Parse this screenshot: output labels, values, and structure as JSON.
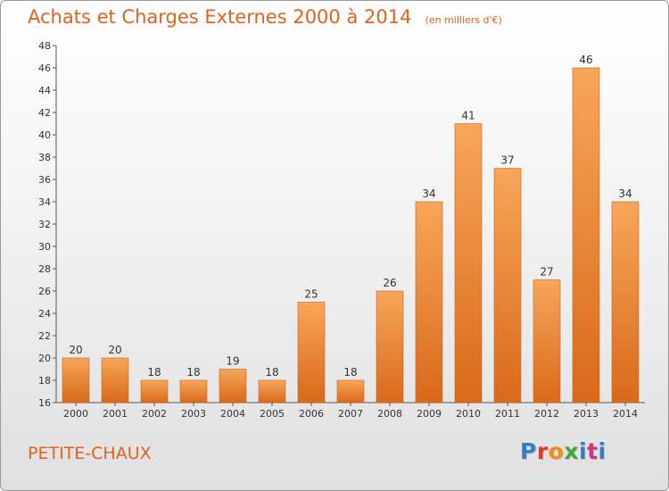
{
  "header": {
    "title": "Achats et Charges Externes 2000 à 2014",
    "unit": "(en milliers d'€)"
  },
  "footer": {
    "place": "PETITE-CHAUX",
    "brand": "Proxiti"
  },
  "colors": {
    "bar_light": "#f7a65a",
    "bar_dark": "#d9691a",
    "accent": "#e0621d",
    "brand_letters": [
      "#2f7fc1",
      "#e03a2e",
      "#f08c1a",
      "#4aa23a",
      "#2f7fc1",
      "#d6327a",
      "#2f7fc1"
    ]
  },
  "chart_data": {
    "type": "bar",
    "title": "Achats et Charges Externes 2000 à 2014",
    "subtitle": "(en milliers d'€)",
    "categories": [
      "2000",
      "2001",
      "2002",
      "2003",
      "2004",
      "2005",
      "2006",
      "2007",
      "2008",
      "2009",
      "2010",
      "2011",
      "2012",
      "2013",
      "2014"
    ],
    "values": [
      20,
      20,
      18,
      18,
      19,
      18,
      25,
      18,
      26,
      34,
      41,
      37,
      27,
      46,
      34
    ],
    "ylim": [
      16,
      48
    ],
    "yticks": [
      16,
      18,
      20,
      22,
      24,
      26,
      28,
      30,
      32,
      34,
      36,
      38,
      40,
      42,
      44,
      46,
      48
    ],
    "grid": false,
    "data_labels": true
  }
}
